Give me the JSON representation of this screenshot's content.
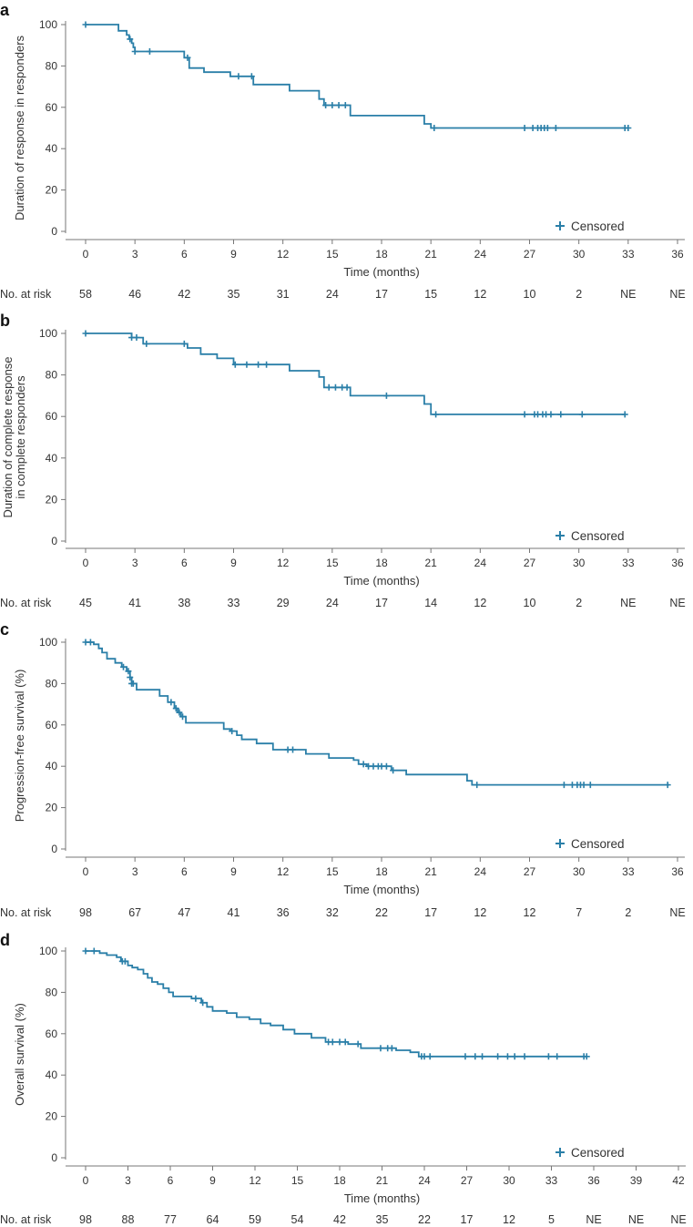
{
  "chart_data": [
    {
      "panel": "a",
      "type": "line",
      "title": "",
      "xlabel": "Time (months)",
      "ylabel": "Duration of response in responders",
      "xlim": [
        0,
        36
      ],
      "ylim": [
        0,
        100
      ],
      "xticks": [
        0,
        3,
        6,
        9,
        12,
        15,
        18,
        21,
        24,
        27,
        30,
        33,
        36
      ],
      "yticks": [
        0,
        20,
        40,
        60,
        80,
        100
      ],
      "legend": "Censored",
      "legend_position": "bottom-right",
      "step_x": [
        0,
        2.0,
        2.5,
        2.65,
        2.8,
        2.9,
        3.0,
        6.0,
        6.3,
        7.2,
        8.8,
        10.2,
        12.4,
        14.2,
        14.5,
        16.1,
        20.6,
        21.0,
        33.0
      ],
      "step_y": [
        100,
        97,
        95,
        93,
        91,
        89,
        87,
        84,
        79,
        77,
        75,
        71,
        68,
        64,
        61,
        56,
        52,
        50,
        50
      ],
      "censored_x": [
        0,
        2.7,
        3.0,
        3.9,
        6.2,
        9.3,
        10.1,
        14.6,
        15.0,
        15.4,
        15.8,
        21.2,
        26.7,
        27.2,
        27.5,
        27.7,
        27.9,
        28.1,
        28.6,
        32.8,
        33.0
      ],
      "risk_label": "No. at risk",
      "risk_values": [
        "58",
        "46",
        "42",
        "35",
        "31",
        "24",
        "17",
        "15",
        "12",
        "10",
        "2",
        "NE",
        "NE"
      ]
    },
    {
      "panel": "b",
      "type": "line",
      "title": "",
      "xlabel": "Time (months)",
      "ylabel": "Duration of complete response",
      "ylabel2": "in complete responders",
      "xlim": [
        0,
        36
      ],
      "ylim": [
        0,
        100
      ],
      "xticks": [
        0,
        3,
        6,
        9,
        12,
        15,
        18,
        21,
        24,
        27,
        30,
        33,
        36
      ],
      "yticks": [
        0,
        20,
        40,
        60,
        80,
        100
      ],
      "legend": "Censored",
      "legend_position": "bottom-right",
      "step_x": [
        0,
        2.8,
        3.5,
        6.2,
        7.0,
        8.0,
        9.0,
        10.9,
        12.4,
        14.2,
        14.5,
        16.1,
        20.6,
        21.0,
        32.8
      ],
      "step_y": [
        100,
        98,
        95,
        93,
        90,
        88,
        85,
        85,
        82,
        79,
        74,
        70,
        66,
        61,
        61
      ],
      "censored_x": [
        0,
        2.8,
        3.1,
        3.7,
        6.0,
        9.1,
        9.8,
        10.5,
        11.0,
        14.8,
        15.2,
        15.6,
        15.9,
        18.3,
        21.3,
        26.7,
        27.3,
        27.5,
        27.8,
        28.0,
        28.3,
        28.9,
        30.2,
        32.8
      ],
      "risk_label": "No. at risk",
      "risk_values": [
        "45",
        "41",
        "38",
        "33",
        "29",
        "24",
        "17",
        "14",
        "12",
        "10",
        "2",
        "NE",
        "NE"
      ]
    },
    {
      "panel": "c",
      "type": "line",
      "title": "",
      "xlabel": "Time (months)",
      "ylabel": "Progression-free survival (%)",
      "xlim": [
        0,
        36
      ],
      "ylim": [
        0,
        100
      ],
      "xticks": [
        0,
        3,
        6,
        9,
        12,
        15,
        18,
        21,
        24,
        27,
        30,
        33,
        36
      ],
      "yticks": [
        0,
        20,
        40,
        60,
        80,
        100
      ],
      "legend": "Censored",
      "legend_position": "bottom-right",
      "step_x": [
        0,
        0.5,
        0.8,
        1.0,
        1.3,
        1.8,
        2.2,
        2.5,
        2.7,
        2.8,
        3.1,
        4.5,
        5.0,
        5.4,
        5.6,
        5.8,
        6.1,
        8.4,
        8.8,
        9.2,
        9.5,
        10.4,
        11.4,
        12.3,
        13.4,
        14.8,
        16.3,
        16.6,
        17.1,
        18.6,
        19.5,
        23.2,
        23.5,
        35.5
      ],
      "step_y": [
        100,
        99,
        97,
        95,
        92,
        90,
        88,
        86,
        83,
        80,
        77,
        74,
        71,
        68,
        66,
        64,
        61,
        58,
        57,
        55,
        53,
        51,
        48,
        48,
        46,
        44,
        43,
        41,
        40,
        38,
        36,
        33,
        31,
        31
      ],
      "censored_x": [
        0,
        0.3,
        2.3,
        2.6,
        2.7,
        2.8,
        2.9,
        5.2,
        5.5,
        5.7,
        5.9,
        8.9,
        12.3,
        12.6,
        16.9,
        17.2,
        17.5,
        17.8,
        18.0,
        18.3,
        18.7,
        23.8,
        29.1,
        29.6,
        29.9,
        30.1,
        30.3,
        30.7,
        35.4
      ],
      "risk_label": "No. at risk",
      "risk_values": [
        "98",
        "67",
        "47",
        "41",
        "36",
        "32",
        "22",
        "17",
        "12",
        "12",
        "7",
        "2",
        "NE"
      ]
    },
    {
      "panel": "d",
      "type": "line",
      "title": "",
      "xlabel": "Time (months)",
      "ylabel": "Overall survival (%)",
      "xlim": [
        0,
        42
      ],
      "ylim": [
        0,
        100
      ],
      "xticks": [
        0,
        3,
        6,
        9,
        12,
        15,
        18,
        21,
        24,
        27,
        30,
        33,
        36,
        39,
        42
      ],
      "yticks": [
        0,
        20,
        40,
        60,
        80,
        100
      ],
      "legend": "Censored",
      "legend_position": "bottom-right",
      "step_x": [
        0,
        1.0,
        1.5,
        2.2,
        2.5,
        3.0,
        3.3,
        3.7,
        4.1,
        4.4,
        4.7,
        5.1,
        5.5,
        5.9,
        6.2,
        7.5,
        8.2,
        8.6,
        9.0,
        10.0,
        10.7,
        11.6,
        12.4,
        13.1,
        14.0,
        14.8,
        16.0,
        17.0,
        18.6,
        19.5,
        22.0,
        23.0,
        23.6,
        35.5
      ],
      "step_y": [
        100,
        99,
        98,
        97,
        95,
        93,
        92,
        91,
        89,
        87,
        85,
        84,
        82,
        80,
        78,
        77,
        75,
        73,
        71,
        70,
        68,
        67,
        65,
        64,
        62,
        60,
        58,
        56,
        55,
        53,
        52,
        51,
        49,
        49
      ],
      "censored_x": [
        0,
        0.6,
        2.6,
        2.8,
        7.8,
        8.3,
        17.2,
        17.5,
        18.0,
        18.4,
        19.3,
        20.9,
        21.4,
        21.7,
        23.8,
        24.0,
        24.4,
        26.9,
        27.6,
        28.1,
        29.2,
        29.9,
        30.4,
        31.1,
        32.8,
        33.4,
        35.3,
        35.5
      ],
      "risk_label": "No. at risk",
      "risk_values": [
        "98",
        "88",
        "77",
        "64",
        "59",
        "54",
        "42",
        "35",
        "22",
        "17",
        "12",
        "5",
        "NE",
        "NE",
        "NE"
      ]
    }
  ],
  "colors": {
    "curve": "#2a7fa8",
    "axis": "#777777"
  }
}
